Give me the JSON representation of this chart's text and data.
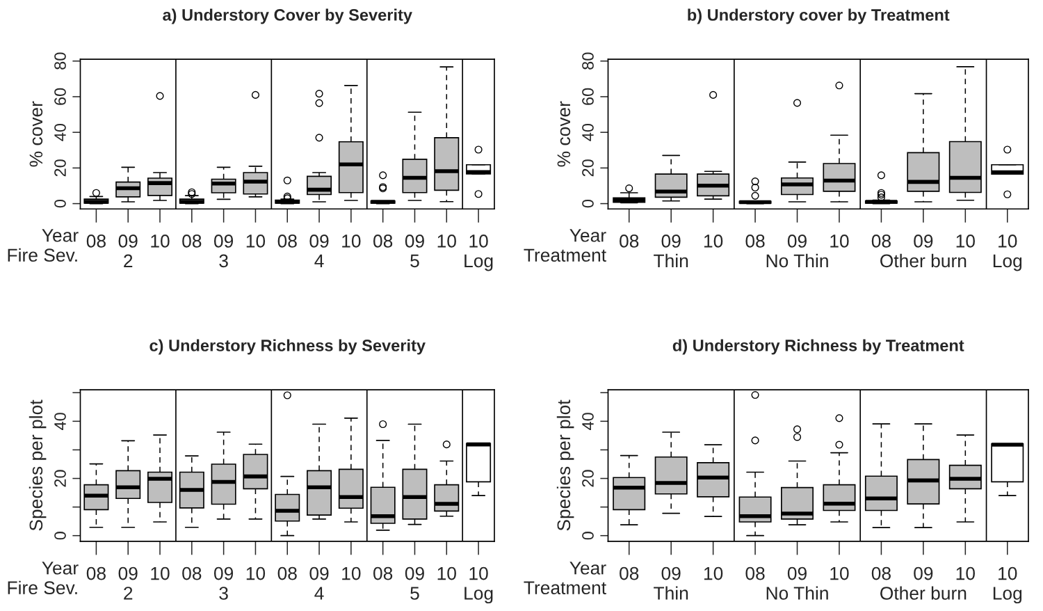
{
  "chart_data": [
    {
      "type": "box",
      "title": "a) Understory Cover by Severity",
      "ylabel": "% cover",
      "xlabel": "Year\nFire Sev.",
      "categories": [
        "08",
        "09\n2",
        "10",
        "08",
        "09\n3",
        "10",
        "08",
        "09\n4",
        "10",
        "08",
        "09\n5",
        "10",
        "10\nLog"
      ],
      "colors": [
        "#bebebe",
        "#bebebe",
        "#bebebe",
        "#bebebe",
        "#bebebe",
        "#bebebe",
        "#bebebe",
        "#bebebe",
        "#bebebe",
        "#bebebe",
        "#bebebe",
        "#bebebe",
        "#ffffff"
      ],
      "boxes": [
        {
          "low": 0,
          "q1": 0.3,
          "median": 1,
          "q3": 2.5,
          "high": 4,
          "outliers": [
            6
          ]
        },
        {
          "low": 1,
          "q1": 3.8,
          "median": 8.6,
          "q3": 12.1,
          "high": 20.4
        },
        {
          "low": 1.8,
          "q1": 4.6,
          "median": 11.5,
          "q3": 14.3,
          "high": 17.4,
          "outliers": [
            60.4
          ]
        },
        {
          "low": 0,
          "q1": 0.3,
          "median": 1,
          "q3": 2.5,
          "high": 4.5,
          "outliers": [
            6.4,
            5.4
          ]
        },
        {
          "low": 2.4,
          "q1": 6.1,
          "median": 11.3,
          "q3": 13.7,
          "high": 20.4
        },
        {
          "low": 3.8,
          "q1": 5.4,
          "median": 12.3,
          "q3": 17.4,
          "high": 21,
          "outliers": [
            61
          ]
        },
        {
          "low": 0,
          "q1": 0.3,
          "median": 1,
          "q3": 2,
          "high": 2.5,
          "outliers": [
            13,
            4,
            3
          ]
        },
        {
          "low": 1,
          "q1": 5.1,
          "median": 7.8,
          "q3": 15.3,
          "high": 17.4,
          "outliers": [
            37,
            56.4,
            61.7
          ]
        },
        {
          "low": 1.8,
          "q1": 6.2,
          "median": 22,
          "q3": 34.7,
          "high": 66.3
        },
        {
          "low": 0,
          "q1": 0.3,
          "median": 1,
          "q3": 1.5,
          "high": 1.5,
          "outliers": [
            8.6,
            9.3,
            15.9
          ]
        },
        {
          "low": 1.8,
          "q1": 6.2,
          "median": 14.5,
          "q3": 24.9,
          "high": 51.3
        },
        {
          "low": 1.1,
          "q1": 7.5,
          "median": 18.2,
          "q3": 37,
          "high": 76.7
        },
        {
          "low": 16.7,
          "q1": 16.7,
          "median": 17.7,
          "q3": 21.8,
          "high": 21.8,
          "outliers": [
            30.3,
            5.4
          ]
        }
      ],
      "ylim": [
        -3,
        81
      ],
      "yticks": [
        0,
        20,
        40,
        60,
        80
      ]
    },
    {
      "type": "box",
      "title": "b) Understory cover by Treatment",
      "ylabel": "% cover",
      "xlabel": "Year\nTreatment",
      "categories": [
        "08",
        "09\nThin",
        "10",
        "08",
        "09\nNo Thin",
        "10",
        "08",
        "09\nOther burn",
        "10",
        "10\nLog"
      ],
      "colors": [
        "#bebebe",
        "#bebebe",
        "#bebebe",
        "#bebebe",
        "#bebebe",
        "#bebebe",
        "#bebebe",
        "#bebebe",
        "#bebebe",
        "#ffffff"
      ],
      "boxes": [
        {
          "low": 0.5,
          "q1": 0.8,
          "median": 1.9,
          "q3": 3.2,
          "high": 6.1,
          "outliers": [
            8.6
          ]
        },
        {
          "low": 1.5,
          "q1": 3.6,
          "median": 6.8,
          "q3": 16.6,
          "high": 27
        },
        {
          "low": 2.5,
          "q1": 4.4,
          "median": 10.1,
          "q3": 16.6,
          "high": 18.1,
          "outliers": [
            61
          ]
        },
        {
          "low": 0,
          "q1": 0.3,
          "median": 0.8,
          "q3": 1.3,
          "high": 1.5,
          "outliers": [
            4.4,
            9,
            12.5
          ]
        },
        {
          "low": 1,
          "q1": 5.1,
          "median": 10.8,
          "q3": 14.4,
          "high": 23.3,
          "outliers": [
            56.5
          ]
        },
        {
          "low": 1,
          "q1": 6.9,
          "median": 12.9,
          "q3": 22.5,
          "high": 38.4,
          "outliers": [
            66.3
          ]
        },
        {
          "low": 0,
          "q1": 0.3,
          "median": 1,
          "q3": 1.5,
          "high": 2,
          "outliers": [
            3.5,
            5,
            6,
            15.9
          ]
        },
        {
          "low": 1,
          "q1": 6.9,
          "median": 12.2,
          "q3": 28.6,
          "high": 61.7
        },
        {
          "low": 1.9,
          "q1": 6.3,
          "median": 14.5,
          "q3": 34.8,
          "high": 76.8
        },
        {
          "low": 16.6,
          "q1": 16.6,
          "median": 17.6,
          "q3": 21.8,
          "high": 21.8,
          "outliers": [
            30.3,
            5.2
          ]
        }
      ],
      "ylim": [
        -3,
        81
      ],
      "yticks": [
        0,
        20,
        40,
        60,
        80
      ]
    },
    {
      "type": "box",
      "title": "c) Understory Richness by Severity",
      "ylabel": "Species per plot",
      "xlabel": "Year\nFire Sev.",
      "categories": [
        "08",
        "09\n2",
        "10",
        "08",
        "09\n3",
        "10",
        "08",
        "09\n4",
        "10",
        "08",
        "09\n5",
        "10",
        "10\nLog"
      ],
      "colors": [
        "#bebebe",
        "#bebebe",
        "#bebebe",
        "#bebebe",
        "#bebebe",
        "#bebebe",
        "#bebebe",
        "#bebebe",
        "#bebebe",
        "#bebebe",
        "#bebebe",
        "#bebebe",
        "#ffffff"
      ],
      "boxes": [
        {
          "low": 2.9,
          "q1": 9.1,
          "median": 14,
          "q3": 17.8,
          "high": 25.1
        },
        {
          "low": 2.9,
          "q1": 13,
          "median": 16.9,
          "q3": 22.7,
          "high": 33.2
        },
        {
          "low": 4.8,
          "q1": 11.6,
          "median": 19.9,
          "q3": 22.2,
          "high": 35.2
        },
        {
          "low": 2.9,
          "q1": 9.7,
          "median": 16,
          "q3": 22.2,
          "high": 27.9
        },
        {
          "low": 5.8,
          "q1": 11,
          "median": 18.8,
          "q3": 25,
          "high": 36.2
        },
        {
          "low": 5.8,
          "q1": 16.4,
          "median": 20.7,
          "q3": 28.4,
          "high": 32
        },
        {
          "low": 0,
          "q1": 5.1,
          "median": 8.7,
          "q3": 14.4,
          "high": 20.7,
          "outliers": [
            49.1
          ]
        },
        {
          "low": 5.8,
          "q1": 7.2,
          "median": 16.9,
          "q3": 22.7,
          "high": 39
        },
        {
          "low": 4.8,
          "q1": 9.6,
          "median": 13.5,
          "q3": 23.2,
          "high": 41.1
        },
        {
          "low": 1.9,
          "q1": 4.3,
          "median": 6.8,
          "q3": 16.9,
          "high": 33.3,
          "outliers": [
            39
          ]
        },
        {
          "low": 3.9,
          "q1": 5.8,
          "median": 13.5,
          "q3": 23.2,
          "high": 39
        },
        {
          "low": 6.8,
          "q1": 8.6,
          "median": 11.1,
          "q3": 17.8,
          "high": 26.1,
          "outliers": [
            31.9
          ]
        },
        {
          "low": 14,
          "q1": 18.8,
          "median": 31.9,
          "q3": 32.2,
          "high": 32.2
        }
      ],
      "ylim": [
        -2,
        51
      ],
      "yticks": [
        0,
        {
          "value": 10,
          "label": null
        },
        20,
        {
          "value": 30,
          "label": null
        },
        40,
        {
          "value": 50,
          "label": null
        }
      ]
    },
    {
      "type": "box",
      "title": "d) Understory Richness by Treatment",
      "ylabel": "Species per plot",
      "xlabel": "Year\nTreatment",
      "categories": [
        "08",
        "09\nThin",
        "10",
        "08",
        "09\nNo Thin",
        "10",
        "08",
        "09\nOther burn",
        "10",
        "10\nLog"
      ],
      "colors": [
        "#bebebe",
        "#bebebe",
        "#bebebe",
        "#bebebe",
        "#bebebe",
        "#bebebe",
        "#bebebe",
        "#bebebe",
        "#bebebe",
        "#ffffff"
      ],
      "boxes": [
        {
          "low": 3.8,
          "q1": 9.1,
          "median": 16.8,
          "q3": 20.3,
          "high": 28
        },
        {
          "low": 7.8,
          "q1": 14.6,
          "median": 18.4,
          "q3": 27.5,
          "high": 36.2
        },
        {
          "low": 6.7,
          "q1": 13.6,
          "median": 20.3,
          "q3": 25.5,
          "high": 31.8
        },
        {
          "low": 0,
          "q1": 4.8,
          "median": 6.8,
          "q3": 13.5,
          "high": 22.2,
          "outliers": [
            33.3,
            49.2
          ]
        },
        {
          "low": 3.8,
          "q1": 5.8,
          "median": 7.7,
          "q3": 16.8,
          "high": 26.1,
          "outliers": [
            34.5,
            37.2
          ]
        },
        {
          "low": 4.8,
          "q1": 8.8,
          "median": 11.2,
          "q3": 17.8,
          "high": 29,
          "outliers": [
            31.8,
            41.1
          ]
        },
        {
          "low": 2.8,
          "q1": 8.8,
          "median": 13,
          "q3": 20.8,
          "high": 39.1
        },
        {
          "low": 2.8,
          "q1": 11.1,
          "median": 19.3,
          "q3": 26.6,
          "high": 39.1
        },
        {
          "low": 4.8,
          "q1": 16.4,
          "median": 19.9,
          "q3": 24.6,
          "high": 35.2
        },
        {
          "low": 14,
          "q1": 18.8,
          "median": 31.8,
          "q3": 32.1,
          "high": 32.1
        }
      ],
      "ylim": [
        -2,
        51
      ],
      "yticks": [
        0,
        {
          "value": 10,
          "label": null
        },
        20,
        {
          "value": 30,
          "label": null
        },
        40,
        {
          "value": 50,
          "label": null
        }
      ]
    }
  ]
}
